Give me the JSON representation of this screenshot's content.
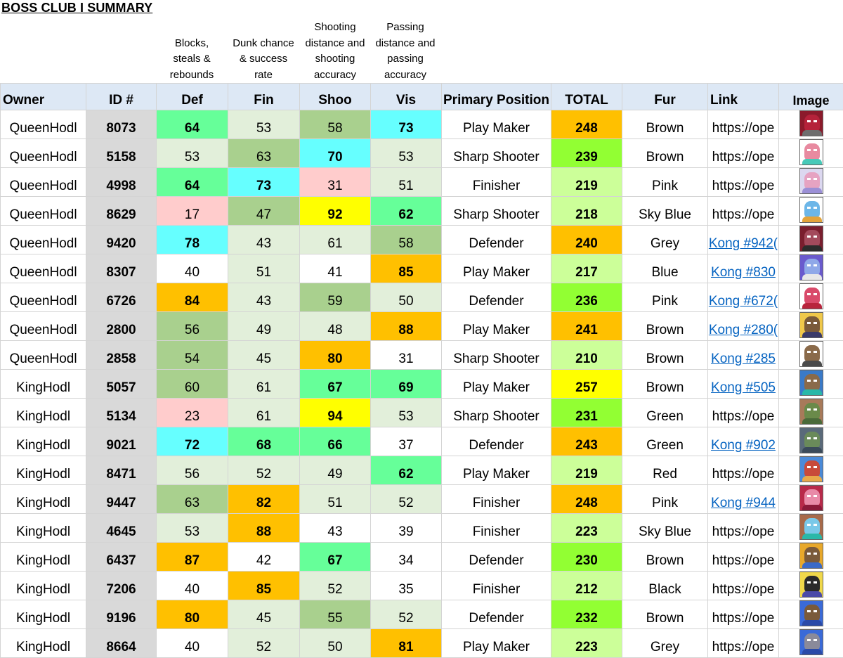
{
  "title": "BOSS CLUB I SUMMARY",
  "descriptions": {
    "def": "Blocks,\nsteals &\nrebounds",
    "fin": "Dunk chance\n& success\nrate",
    "shoo": "Shooting\ndistance and\nshooting\naccuracy",
    "vis": "Passing\ndistance and\npassing\naccuracy"
  },
  "headers": {
    "owner": "Owner",
    "id": "ID #",
    "def": "Def",
    "fin": "Fin",
    "shoo": "Shoo",
    "vis": "Vis",
    "position": "Primary Position",
    "total": "TOTAL",
    "fur": "Fur",
    "link": "Link",
    "image": "Image"
  },
  "colors": {
    "white": "#ffffff",
    "lightgreen": "#e2efda",
    "midgreen": "#a9d08e",
    "brightgreen": "#66ff99",
    "limegreen": "#92ff33",
    "cyan": "#66ffff",
    "yellow": "#ffff00",
    "orange": "#ffc000",
    "pink": "#ffcccc",
    "palegreen": "#ccff99",
    "header_bg": "#dde8f5",
    "id_bg": "#d9d9d9",
    "link_blue": "#0563c1"
  },
  "rows": [
    {
      "owner": "QueenHodl",
      "id": "8073",
      "def": "64",
      "def_c": "brightgreen",
      "def_b": true,
      "fin": "53",
      "fin_c": "lightgreen",
      "fin_b": false,
      "shoo": "58",
      "shoo_c": "midgreen",
      "shoo_b": false,
      "vis": "73",
      "vis_c": "cyan",
      "vis_b": true,
      "position": "Play Maker",
      "total": "248",
      "total_c": "orange",
      "fur": "Brown",
      "link": "https://ope",
      "link_is_anchor": false,
      "avatar": {
        "bg": "#8b1a2b",
        "head": "#b5223a",
        "body": "#6e6e6e"
      }
    },
    {
      "owner": "QueenHodl",
      "id": "5158",
      "def": "53",
      "def_c": "lightgreen",
      "def_b": false,
      "fin": "63",
      "fin_c": "midgreen",
      "fin_b": false,
      "shoo": "70",
      "shoo_c": "cyan",
      "shoo_b": true,
      "vis": "53",
      "vis_c": "lightgreen",
      "vis_b": false,
      "position": "Sharp Shooter",
      "total": "239",
      "total_c": "limegreen",
      "fur": "Brown",
      "link": "https://ope",
      "link_is_anchor": false,
      "avatar": {
        "bg": "#ffffff",
        "head": "#e88aa0",
        "body": "#47c9b8"
      }
    },
    {
      "owner": "QueenHodl",
      "id": "4998",
      "def": "64",
      "def_c": "brightgreen",
      "def_b": true,
      "fin": "73",
      "fin_c": "cyan",
      "fin_b": true,
      "shoo": "31",
      "shoo_c": "pink",
      "shoo_b": false,
      "vis": "51",
      "vis_c": "lightgreen",
      "vis_b": false,
      "position": "Finisher",
      "total": "219",
      "total_c": "palegreen",
      "fur": "Pink",
      "link": "https://ope",
      "link_is_anchor": false,
      "avatar": {
        "bg": "#dcd8f0",
        "head": "#e6a3c2",
        "body": "#9b8fd6"
      }
    },
    {
      "owner": "QueenHodl",
      "id": "8629",
      "def": "17",
      "def_c": "pink",
      "def_b": false,
      "fin": "47",
      "fin_c": "midgreen",
      "fin_b": false,
      "shoo": "92",
      "shoo_c": "yellow",
      "shoo_b": true,
      "vis": "62",
      "vis_c": "brightgreen",
      "vis_b": true,
      "position": "Sharp Shooter",
      "total": "218",
      "total_c": "palegreen",
      "fur": "Sky Blue",
      "link": "https://ope",
      "link_is_anchor": false,
      "avatar": {
        "bg": "#ffffff",
        "head": "#6cb6e8",
        "body": "#e3a33a"
      }
    },
    {
      "owner": "QueenHodl",
      "id": "9420",
      "def": "78",
      "def_c": "cyan",
      "def_b": true,
      "fin": "43",
      "fin_c": "lightgreen",
      "fin_b": false,
      "shoo": "61",
      "shoo_c": "lightgreen",
      "shoo_b": false,
      "vis": "58",
      "vis_c": "midgreen",
      "vis_b": false,
      "position": "Defender",
      "total": "240",
      "total_c": "orange",
      "fur": "Grey",
      "link": "Kong #942(",
      "link_is_anchor": true,
      "avatar": {
        "bg": "#7a1e2e",
        "head": "#a34a5c",
        "body": "#2c2c2c"
      }
    },
    {
      "owner": "QueenHodl",
      "id": "8307",
      "def": "40",
      "def_c": "white",
      "def_b": false,
      "fin": "51",
      "fin_c": "lightgreen",
      "fin_b": false,
      "shoo": "41",
      "shoo_c": "white",
      "shoo_b": false,
      "vis": "85",
      "vis_c": "orange",
      "vis_b": true,
      "position": "Play Maker",
      "total": "217",
      "total_c": "palegreen",
      "fur": "Blue",
      "link": "Kong #830",
      "link_is_anchor": true,
      "avatar": {
        "bg": "#6a5acd",
        "head": "#8fa8e8",
        "body": "#e8e8e8"
      }
    },
    {
      "owner": "QueenHodl",
      "id": "6726",
      "def": "84",
      "def_c": "orange",
      "def_b": true,
      "fin": "43",
      "fin_c": "lightgreen",
      "fin_b": false,
      "shoo": "59",
      "shoo_c": "midgreen",
      "shoo_b": false,
      "vis": "50",
      "vis_c": "lightgreen",
      "vis_b": false,
      "position": "Defender",
      "total": "236",
      "total_c": "limegreen",
      "fur": "Pink",
      "link": "Kong #672(",
      "link_is_anchor": true,
      "avatar": {
        "bg": "#ffffff",
        "head": "#d94a6a",
        "body": "#b8243c"
      }
    },
    {
      "owner": "QueenHodl",
      "id": "2800",
      "def": "56",
      "def_c": "midgreen",
      "def_b": false,
      "fin": "49",
      "fin_c": "lightgreen",
      "fin_b": false,
      "shoo": "48",
      "shoo_c": "lightgreen",
      "shoo_b": false,
      "vis": "88",
      "vis_c": "orange",
      "vis_b": true,
      "position": "Play Maker",
      "total": "241",
      "total_c": "orange",
      "fur": "Brown",
      "link": "Kong #280(",
      "link_is_anchor": true,
      "avatar": {
        "bg": "#f0c84a",
        "head": "#7a5a3a",
        "body": "#3a3a6a"
      }
    },
    {
      "owner": "QueenHodl",
      "id": "2858",
      "def": "54",
      "def_c": "midgreen",
      "def_b": false,
      "fin": "45",
      "fin_c": "lightgreen",
      "fin_b": false,
      "shoo": "80",
      "shoo_c": "orange",
      "shoo_b": true,
      "vis": "31",
      "vis_c": "white",
      "vis_b": false,
      "position": "Sharp Shooter",
      "total": "210",
      "total_c": "palegreen",
      "fur": "Brown",
      "link": "Kong #285",
      "link_is_anchor": true,
      "avatar": {
        "bg": "#ffffff",
        "head": "#8a6a4a",
        "body": "#4a4a4a"
      }
    },
    {
      "owner": "KingHodl",
      "id": "5057",
      "def": "60",
      "def_c": "midgreen",
      "def_b": false,
      "fin": "61",
      "fin_c": "lightgreen",
      "fin_b": false,
      "shoo": "67",
      "shoo_c": "brightgreen",
      "shoo_b": true,
      "vis": "69",
      "vis_c": "brightgreen",
      "vis_b": true,
      "position": "Play Maker",
      "total": "257",
      "total_c": "yellow",
      "fur": "Brown",
      "link": "Kong #505",
      "link_is_anchor": true,
      "avatar": {
        "bg": "#3a7ac8",
        "head": "#8a6a4a",
        "body": "#2ab8a8"
      }
    },
    {
      "owner": "KingHodl",
      "id": "5134",
      "def": "23",
      "def_c": "pink",
      "def_b": false,
      "fin": "61",
      "fin_c": "lightgreen",
      "fin_b": false,
      "shoo": "94",
      "shoo_c": "yellow",
      "shoo_b": true,
      "vis": "53",
      "vis_c": "lightgreen",
      "vis_b": false,
      "position": "Sharp Shooter",
      "total": "231",
      "total_c": "limegreen",
      "fur": "Green",
      "link": "https://ope",
      "link_is_anchor": false,
      "avatar": {
        "bg": "#a87a5a",
        "head": "#6a8a4a",
        "body": "#4a6a3a"
      }
    },
    {
      "owner": "KingHodl",
      "id": "9021",
      "def": "72",
      "def_c": "cyan",
      "def_b": true,
      "fin": "68",
      "fin_c": "brightgreen",
      "fin_b": true,
      "shoo": "66",
      "shoo_c": "brightgreen",
      "shoo_b": true,
      "vis": "37",
      "vis_c": "white",
      "vis_b": false,
      "position": "Defender",
      "total": "243",
      "total_c": "orange",
      "fur": "Green",
      "link": "Kong #902",
      "link_is_anchor": true,
      "avatar": {
        "bg": "#5a6a7a",
        "head": "#6a8a5a",
        "body": "#3a4a5a"
      }
    },
    {
      "owner": "KingHodl",
      "id": "8471",
      "def": "56",
      "def_c": "lightgreen",
      "def_b": false,
      "fin": "52",
      "fin_c": "lightgreen",
      "fin_b": false,
      "shoo": "49",
      "shoo_c": "lightgreen",
      "shoo_b": false,
      "vis": "62",
      "vis_c": "brightgreen",
      "vis_b": true,
      "position": "Play Maker",
      "total": "219",
      "total_c": "palegreen",
      "fur": "Red",
      "link": "https://ope",
      "link_is_anchor": false,
      "avatar": {
        "bg": "#4a8ad8",
        "head": "#c84a3a",
        "body": "#e8a84a"
      }
    },
    {
      "owner": "KingHodl",
      "id": "9447",
      "def": "63",
      "def_c": "midgreen",
      "def_b": false,
      "fin": "82",
      "fin_c": "orange",
      "fin_b": true,
      "shoo": "51",
      "shoo_c": "lightgreen",
      "shoo_b": false,
      "vis": "52",
      "vis_c": "lightgreen",
      "vis_b": false,
      "position": "Finisher",
      "total": "248",
      "total_c": "orange",
      "fur": "Pink",
      "link": "Kong #944",
      "link_is_anchor": true,
      "avatar": {
        "bg": "#b82a4a",
        "head": "#e88aa8",
        "body": "#8a1a3a"
      }
    },
    {
      "owner": "KingHodl",
      "id": "4645",
      "def": "53",
      "def_c": "lightgreen",
      "def_b": false,
      "fin": "88",
      "fin_c": "orange",
      "fin_b": true,
      "shoo": "43",
      "shoo_c": "white",
      "shoo_b": false,
      "vis": "39",
      "vis_c": "white",
      "vis_b": false,
      "position": "Finisher",
      "total": "223",
      "total_c": "palegreen",
      "fur": "Sky Blue",
      "link": "https://ope",
      "link_is_anchor": false,
      "avatar": {
        "bg": "#a86a4a",
        "head": "#7ac8e8",
        "body": "#2ab8a8"
      }
    },
    {
      "owner": "KingHodl",
      "id": "6437",
      "def": "87",
      "def_c": "orange",
      "def_b": true,
      "fin": "42",
      "fin_c": "white",
      "fin_b": false,
      "shoo": "67",
      "shoo_c": "brightgreen",
      "shoo_b": true,
      "vis": "34",
      "vis_c": "white",
      "vis_b": false,
      "position": "Defender",
      "total": "230",
      "total_c": "limegreen",
      "fur": "Brown",
      "link": "https://ope",
      "link_is_anchor": false,
      "avatar": {
        "bg": "#e8a82a",
        "head": "#7a5a3a",
        "body": "#3a6ac8"
      }
    },
    {
      "owner": "KingHodl",
      "id": "7206",
      "def": "40",
      "def_c": "white",
      "def_b": false,
      "fin": "85",
      "fin_c": "orange",
      "fin_b": true,
      "shoo": "52",
      "shoo_c": "lightgreen",
      "shoo_b": false,
      "vis": "35",
      "vis_c": "white",
      "vis_b": false,
      "position": "Finisher",
      "total": "212",
      "total_c": "palegreen",
      "fur": "Black",
      "link": "https://ope",
      "link_is_anchor": false,
      "avatar": {
        "bg": "#f0d84a",
        "head": "#2a2a2a",
        "body": "#4a4aa8"
      }
    },
    {
      "owner": "KingHodl",
      "id": "9196",
      "def": "80",
      "def_c": "orange",
      "def_b": true,
      "fin": "45",
      "fin_c": "lightgreen",
      "fin_b": false,
      "shoo": "55",
      "shoo_c": "midgreen",
      "shoo_b": false,
      "vis": "52",
      "vis_c": "lightgreen",
      "vis_b": false,
      "position": "Defender",
      "total": "232",
      "total_c": "limegreen",
      "fur": "Brown",
      "link": "https://ope",
      "link_is_anchor": false,
      "avatar": {
        "bg": "#3a6ad8",
        "head": "#7a5a3a",
        "body": "#2a4aa8"
      }
    },
    {
      "owner": "KingHodl",
      "id": "8664",
      "def": "40",
      "def_c": "white",
      "def_b": false,
      "fin": "52",
      "fin_c": "lightgreen",
      "fin_b": false,
      "shoo": "50",
      "shoo_c": "lightgreen",
      "shoo_b": false,
      "vis": "81",
      "vis_c": "orange",
      "vis_b": true,
      "position": "Play Maker",
      "total": "223",
      "total_c": "palegreen",
      "fur": "Grey",
      "link": "https://ope",
      "link_is_anchor": false,
      "avatar": {
        "bg": "#3a6ad8",
        "head": "#8a8a9a",
        "body": "#2a4aa8"
      }
    }
  ]
}
